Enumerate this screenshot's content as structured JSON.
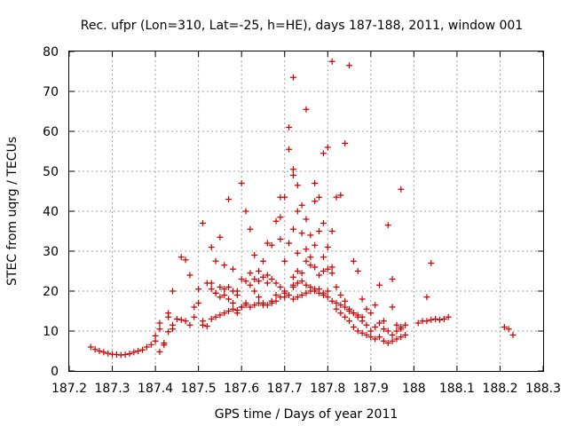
{
  "chart_data": {
    "type": "scatter",
    "title": "Rec. ufpr (Lon=310, Lat=-25, h=HE), days 187-188, 2011, window 001",
    "xlabel": "GPS time / Days of year 2011",
    "ylabel": "STEC from uqrg / TECUs",
    "xlim": [
      187.2,
      188.3
    ],
    "ylim": [
      0,
      80
    ],
    "xticks": [
      187.2,
      187.3,
      187.4,
      187.5,
      187.6,
      187.7,
      187.8,
      187.9,
      188.0,
      188.1,
      188.2,
      188.3
    ],
    "xtick_labels": [
      "187.2",
      "187.3",
      "187.4",
      "187.5",
      "187.6",
      "187.7",
      "187.8",
      "187.9",
      "188",
      "188.1",
      "188.2",
      "188.3"
    ],
    "yticks": [
      0,
      10,
      20,
      30,
      40,
      50,
      60,
      70,
      80
    ],
    "ytick_labels": [
      "0",
      "10",
      "20",
      "30",
      "40",
      "50",
      "60",
      "70",
      "80"
    ],
    "grid": true,
    "marker": "+",
    "color": "#cc0000",
    "series": [
      {
        "points": [
          [
            187.25,
            6.0
          ],
          [
            187.26,
            5.4
          ],
          [
            187.27,
            5.0
          ],
          [
            187.28,
            4.7
          ],
          [
            187.29,
            4.4
          ],
          [
            187.3,
            4.2
          ],
          [
            187.31,
            4.1
          ],
          [
            187.32,
            4.0
          ],
          [
            187.33,
            4.1
          ],
          [
            187.34,
            4.3
          ],
          [
            187.35,
            4.7
          ],
          [
            187.36,
            5.0
          ],
          [
            187.37,
            5.3
          ],
          [
            187.38,
            6.0
          ],
          [
            187.39,
            6.6
          ],
          [
            187.4,
            7.5
          ],
          [
            187.4,
            8.8
          ],
          [
            187.41,
            10.5
          ],
          [
            187.41,
            12.0
          ],
          [
            187.42,
            7.0
          ],
          [
            187.43,
            13.5
          ],
          [
            187.43,
            14.5
          ],
          [
            187.44,
            10.5
          ],
          [
            187.44,
            20.0
          ],
          [
            187.45,
            13.0
          ],
          [
            187.46,
            12.8
          ],
          [
            187.46,
            28.5
          ],
          [
            187.47,
            12.5
          ],
          [
            187.47,
            27.8
          ],
          [
            187.48,
            11.5
          ],
          [
            187.48,
            24.0
          ],
          [
            187.49,
            16.0
          ],
          [
            187.49,
            13.5
          ],
          [
            187.5,
            17.0
          ],
          [
            187.5,
            20.5
          ],
          [
            187.51,
            11.5
          ],
          [
            187.51,
            12.5
          ],
          [
            187.51,
            37.0
          ],
          [
            187.52,
            11.2
          ],
          [
            187.41,
            4.8
          ],
          [
            187.42,
            6.5
          ],
          [
            187.43,
            9.8
          ],
          [
            187.44,
            11.5
          ],
          [
            187.53,
            31.0
          ],
          [
            187.53,
            22.0
          ],
          [
            187.54,
            27.5
          ],
          [
            187.54,
            19.5
          ],
          [
            187.55,
            33.5
          ],
          [
            187.55,
            21.0
          ],
          [
            187.56,
            19.0
          ],
          [
            187.56,
            26.5
          ],
          [
            187.57,
            43.0
          ],
          [
            187.57,
            18.0
          ],
          [
            187.58,
            25.5
          ],
          [
            187.58,
            17.0
          ],
          [
            187.59,
            20.0
          ],
          [
            187.59,
            14.5
          ],
          [
            187.6,
            47.0
          ],
          [
            187.6,
            16.0
          ],
          [
            187.61,
            40.0
          ],
          [
            187.61,
            16.5
          ],
          [
            187.52,
            22.0
          ],
          [
            187.53,
            20.5
          ],
          [
            187.54,
            19.5
          ],
          [
            187.55,
            18.5
          ],
          [
            187.56,
            20.5
          ],
          [
            187.57,
            21.0
          ],
          [
            187.58,
            20.0
          ],
          [
            187.59,
            19.0
          ],
          [
            187.6,
            23.0
          ],
          [
            187.61,
            22.5
          ],
          [
            187.53,
            13.0
          ],
          [
            187.54,
            13.5
          ],
          [
            187.55,
            14.0
          ],
          [
            187.56,
            14.5
          ],
          [
            187.57,
            15.0
          ],
          [
            187.58,
            15.5
          ],
          [
            187.59,
            15.2
          ],
          [
            187.6,
            16.0
          ],
          [
            187.61,
            17.0
          ],
          [
            187.62,
            35.5
          ],
          [
            187.62,
            21.5
          ],
          [
            187.63,
            29.0
          ],
          [
            187.63,
            20.0
          ],
          [
            187.64,
            25.0
          ],
          [
            187.64,
            18.5
          ],
          [
            187.65,
            27.5
          ],
          [
            187.65,
            17.0
          ],
          [
            187.66,
            32.0
          ],
          [
            187.66,
            22.0
          ],
          [
            187.67,
            31.5
          ],
          [
            187.67,
            17.5
          ],
          [
            187.68,
            37.5
          ],
          [
            187.68,
            19.0
          ],
          [
            187.69,
            38.5
          ],
          [
            187.69,
            33.0
          ],
          [
            187.69,
            43.5
          ],
          [
            187.7,
            43.5
          ],
          [
            187.7,
            27.5
          ],
          [
            187.7,
            20.0
          ],
          [
            187.71,
            61.0
          ],
          [
            187.71,
            55.5
          ],
          [
            187.71,
            32.0
          ],
          [
            187.71,
            19.0
          ],
          [
            187.62,
            24.5
          ],
          [
            187.63,
            23.0
          ],
          [
            187.64,
            22.5
          ],
          [
            187.65,
            23.5
          ],
          [
            187.66,
            24.0
          ],
          [
            187.67,
            23.0
          ],
          [
            187.68,
            22.0
          ],
          [
            187.69,
            21.0
          ],
          [
            187.7,
            19.5
          ],
          [
            187.62,
            16.0
          ],
          [
            187.63,
            16.5
          ],
          [
            187.64,
            17.0
          ],
          [
            187.65,
            16.5
          ],
          [
            187.66,
            16.5
          ],
          [
            187.67,
            17.0
          ],
          [
            187.68,
            17.5
          ],
          [
            187.69,
            18.5
          ],
          [
            187.7,
            18.5
          ],
          [
            187.72,
            73.5
          ],
          [
            187.72,
            50.5
          ],
          [
            187.72,
            49.0
          ],
          [
            187.72,
            35.5
          ],
          [
            187.72,
            23.5
          ],
          [
            187.73,
            40.0
          ],
          [
            187.73,
            46.5
          ],
          [
            187.73,
            29.5
          ],
          [
            187.74,
            41.5
          ],
          [
            187.74,
            34.5
          ],
          [
            187.75,
            65.5
          ],
          [
            187.75,
            38.0
          ],
          [
            187.75,
            30.5
          ],
          [
            187.76,
            34.0
          ],
          [
            187.76,
            28.5
          ],
          [
            187.77,
            42.5
          ],
          [
            187.77,
            47.0
          ],
          [
            187.77,
            31.5
          ],
          [
            187.78,
            35.0
          ],
          [
            187.78,
            43.5
          ],
          [
            187.79,
            54.5
          ],
          [
            187.79,
            37.0
          ],
          [
            187.79,
            28.5
          ],
          [
            187.8,
            56.0
          ],
          [
            187.8,
            31.0
          ],
          [
            187.81,
            77.5
          ],
          [
            187.81,
            35.0
          ],
          [
            187.81,
            26.0
          ],
          [
            187.72,
            21.0
          ],
          [
            187.73,
            25.0
          ],
          [
            187.74,
            24.5
          ],
          [
            187.75,
            27.5
          ],
          [
            187.76,
            26.5
          ],
          [
            187.77,
            26.0
          ],
          [
            187.78,
            24.0
          ],
          [
            187.79,
            25.0
          ],
          [
            187.8,
            25.5
          ],
          [
            187.81,
            24.5
          ],
          [
            187.72,
            18.0
          ],
          [
            187.73,
            18.5
          ],
          [
            187.74,
            19.0
          ],
          [
            187.75,
            19.5
          ],
          [
            187.76,
            20.0
          ],
          [
            187.77,
            20.5
          ],
          [
            187.78,
            19.5
          ],
          [
            187.79,
            19.0
          ],
          [
            187.8,
            18.5
          ],
          [
            187.81,
            17.5
          ],
          [
            187.72,
            21.5
          ],
          [
            187.73,
            22.0
          ],
          [
            187.74,
            22.5
          ],
          [
            187.75,
            21.5
          ],
          [
            187.76,
            21.0
          ],
          [
            187.77,
            20.0
          ],
          [
            187.78,
            20.5
          ],
          [
            187.79,
            19.5
          ],
          [
            187.8,
            20.0
          ],
          [
            187.82,
            43.5
          ],
          [
            187.82,
            21.0
          ],
          [
            187.83,
            44.0
          ],
          [
            187.83,
            19.0
          ],
          [
            187.84,
            57.0
          ],
          [
            187.84,
            17.5
          ],
          [
            187.85,
            76.5
          ],
          [
            187.85,
            15.5
          ],
          [
            187.86,
            27.5
          ],
          [
            187.86,
            14.5
          ],
          [
            187.87,
            25.0
          ],
          [
            187.87,
            13.5
          ],
          [
            187.88,
            18.0
          ],
          [
            187.88,
            12.5
          ],
          [
            187.89,
            15.5
          ],
          [
            187.89,
            11.5
          ],
          [
            187.82,
            15.5
          ],
          [
            187.83,
            14.5
          ],
          [
            187.84,
            13.5
          ],
          [
            187.85,
            12.5
          ],
          [
            187.86,
            11.0
          ],
          [
            187.87,
            10.0
          ],
          [
            187.88,
            9.5
          ],
          [
            187.89,
            9.0
          ],
          [
            187.82,
            17.0
          ],
          [
            187.83,
            16.5
          ],
          [
            187.84,
            16.0
          ],
          [
            187.85,
            15.0
          ],
          [
            187.86,
            14.5
          ],
          [
            187.87,
            14.0
          ],
          [
            187.88,
            13.5
          ],
          [
            187.9,
            8.5
          ],
          [
            187.9,
            14.5
          ],
          [
            187.91,
            8.0
          ],
          [
            187.91,
            16.5
          ],
          [
            187.92,
            8.5
          ],
          [
            187.92,
            21.5
          ],
          [
            187.93,
            7.5
          ],
          [
            187.93,
            12.5
          ],
          [
            187.94,
            7.0
          ],
          [
            187.94,
            36.5
          ],
          [
            187.95,
            7.5
          ],
          [
            187.95,
            16.0
          ],
          [
            187.95,
            23.0
          ],
          [
            187.96,
            8.0
          ],
          [
            187.96,
            11.5
          ],
          [
            187.97,
            8.5
          ],
          [
            187.97,
            45.5
          ],
          [
            187.97,
            11.0
          ],
          [
            187.98,
            9.0
          ],
          [
            187.98,
            11.5
          ],
          [
            187.9,
            10.0
          ],
          [
            187.91,
            11.0
          ],
          [
            187.92,
            12.0
          ],
          [
            187.93,
            10.5
          ],
          [
            187.94,
            10.0
          ],
          [
            187.95,
            9.0
          ],
          [
            187.96,
            10.0
          ],
          [
            187.97,
            10.5
          ],
          [
            188.01,
            12.0
          ],
          [
            188.02,
            12.5
          ],
          [
            188.03,
            18.5
          ],
          [
            188.03,
            12.5
          ],
          [
            188.04,
            12.8
          ],
          [
            188.04,
            27.0
          ],
          [
            188.05,
            13.0
          ],
          [
            188.06,
            12.8
          ],
          [
            188.07,
            13.0
          ],
          [
            188.08,
            13.5
          ],
          [
            188.21,
            11.0
          ],
          [
            188.22,
            10.5
          ],
          [
            188.23,
            9.0
          ]
        ]
      }
    ]
  }
}
